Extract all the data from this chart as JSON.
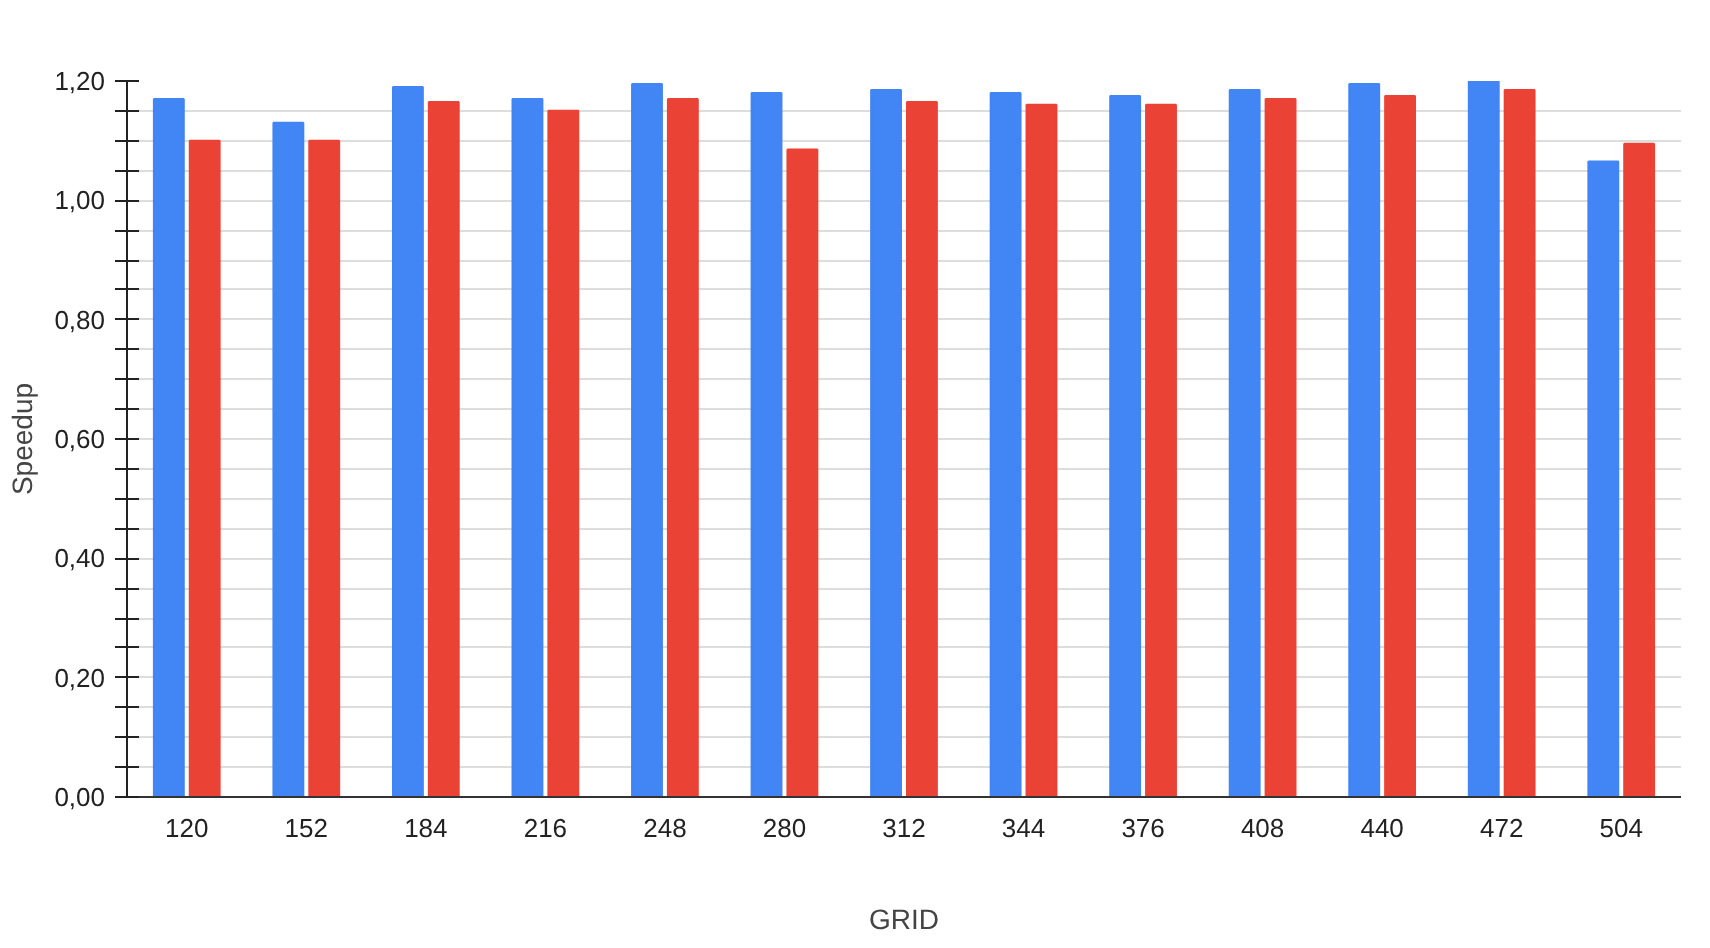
{
  "chart_data": {
    "type": "bar",
    "xlabel": "GRID",
    "ylabel": "Speedup",
    "categories": [
      "120",
      "152",
      "184",
      "216",
      "248",
      "280",
      "312",
      "344",
      "376",
      "408",
      "440",
      "472",
      "504"
    ],
    "series": [
      {
        "color": "#4285f4",
        "values": [
          1.17,
          1.13,
          1.19,
          1.17,
          1.195,
          1.18,
          1.185,
          1.18,
          1.175,
          1.185,
          1.195,
          1.2,
          1.065
        ]
      },
      {
        "color": "#ea4335",
        "values": [
          1.1,
          1.1,
          1.165,
          1.15,
          1.17,
          1.085,
          1.165,
          1.16,
          1.16,
          1.17,
          1.175,
          1.185,
          1.095
        ]
      }
    ],
    "ylim": [
      0,
      1.2
    ],
    "yticks": [
      {
        "value": 0,
        "label": "0,00"
      },
      {
        "value": 0.05,
        "label": null
      },
      {
        "value": 0.1,
        "label": null
      },
      {
        "value": 0.15,
        "label": null
      },
      {
        "value": 0.2,
        "label": "0,20"
      },
      {
        "value": 0.25,
        "label": null
      },
      {
        "value": 0.3,
        "label": null
      },
      {
        "value": 0.35,
        "label": null
      },
      {
        "value": 0.4,
        "label": "0,40"
      },
      {
        "value": 0.45,
        "label": null
      },
      {
        "value": 0.5,
        "label": null
      },
      {
        "value": 0.55,
        "label": null
      },
      {
        "value": 0.6,
        "label": "0,60"
      },
      {
        "value": 0.65,
        "label": null
      },
      {
        "value": 0.7,
        "label": null
      },
      {
        "value": 0.75,
        "label": null
      },
      {
        "value": 0.8,
        "label": "0,80"
      },
      {
        "value": 0.85,
        "label": null
      },
      {
        "value": 0.9,
        "label": null
      },
      {
        "value": 0.95,
        "label": null
      },
      {
        "value": 1.0,
        "label": "1,00"
      },
      {
        "value": 1.05,
        "label": null
      },
      {
        "value": 1.1,
        "label": null
      },
      {
        "value": 1.15,
        "label": null
      },
      {
        "value": 1.2,
        "label": "1,20"
      }
    ],
    "grid": "y"
  }
}
